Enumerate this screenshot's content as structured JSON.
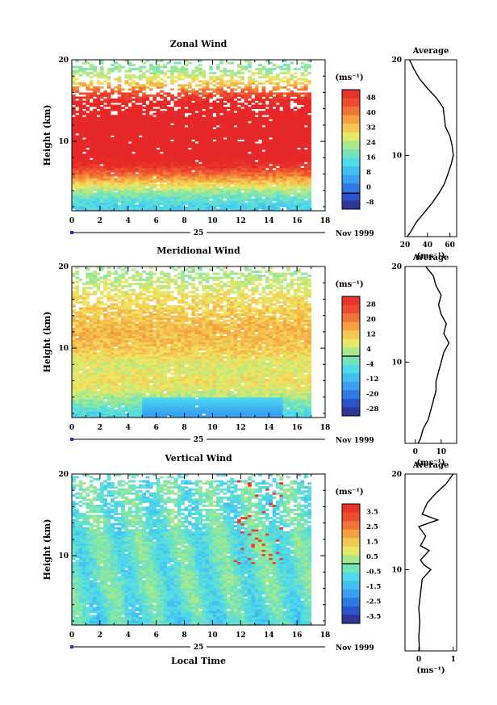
{
  "figure": {
    "date_label": "Nov 1999",
    "xlabel": "Local Time",
    "day_label": "25",
    "height_label": "Height (km)",
    "unit_label": "(ms⁻¹)"
  },
  "chart_data": [
    {
      "type": "heatmap",
      "title": "Zonal Wind",
      "x_ticks": [
        0,
        2,
        4,
        6,
        8,
        10,
        12,
        14,
        16,
        18
      ],
      "y_ticks": [
        10,
        20
      ],
      "xlim": [
        0,
        18
      ],
      "ylim": [
        1.5,
        20
      ],
      "colorbar": {
        "ticks": [
          "48",
          "40",
          "32",
          "24",
          "16",
          "8",
          "0",
          "-8"
        ],
        "range": [
          -8,
          52
        ]
      },
      "rows": [
        {
          "h": 2,
          "v": 14
        },
        {
          "h": 3,
          "v": 18
        },
        {
          "h": 4,
          "v": 24
        },
        {
          "h": 5,
          "v": 33
        },
        {
          "h": 6,
          "v": 42
        },
        {
          "h": 7,
          "v": 50
        },
        {
          "h": 8,
          "v": 56
        },
        {
          "h": 9,
          "v": 60
        },
        {
          "h": 10,
          "v": 62
        },
        {
          "h": 11,
          "v": 61
        },
        {
          "h": 12,
          "v": 59
        },
        {
          "h": 13,
          "v": 55
        },
        {
          "h": 14,
          "v": 56
        },
        {
          "h": 15,
          "v": 52
        },
        {
          "h": 16,
          "v": 44
        },
        {
          "h": 17,
          "v": 34
        },
        {
          "h": 18,
          "v": 27
        },
        {
          "h": 19,
          "v": 22
        }
      ],
      "average": {
        "title": "Average",
        "xlabel": "(ms⁻¹)",
        "x_ticks": [
          20,
          40,
          60
        ],
        "xlim": [
          20,
          66
        ],
        "profile": [
          {
            "h": 1.5,
            "v": 22
          },
          {
            "h": 2,
            "v": 25
          },
          {
            "h": 3,
            "v": 30
          },
          {
            "h": 4,
            "v": 37
          },
          {
            "h": 5,
            "v": 44
          },
          {
            "h": 6,
            "v": 50
          },
          {
            "h": 7,
            "v": 55
          },
          {
            "h": 8,
            "v": 58
          },
          {
            "h": 9,
            "v": 61
          },
          {
            "h": 10,
            "v": 63
          },
          {
            "h": 11,
            "v": 62
          },
          {
            "h": 12,
            "v": 60
          },
          {
            "h": 13,
            "v": 56
          },
          {
            "h": 14,
            "v": 55
          },
          {
            "h": 15,
            "v": 54
          },
          {
            "h": 16,
            "v": 48
          },
          {
            "h": 17,
            "v": 40
          },
          {
            "h": 18,
            "v": 33
          },
          {
            "h": 19,
            "v": 28
          },
          {
            "h": 20,
            "v": 24
          }
        ]
      }
    },
    {
      "type": "heatmap",
      "title": "Meridional Wind",
      "x_ticks": [
        0,
        2,
        4,
        6,
        8,
        10,
        12,
        14,
        16,
        18
      ],
      "y_ticks": [
        10,
        20
      ],
      "xlim": [
        0,
        18
      ],
      "ylim": [
        1.5,
        20
      ],
      "colorbar": {
        "ticks": [
          "28",
          "20",
          "12",
          "4",
          "-4",
          "-12",
          "-20",
          "-28"
        ],
        "range": [
          -28,
          28
        ]
      },
      "rows": [
        {
          "h": 2,
          "v": -6
        },
        {
          "h": 3,
          "v": -2
        },
        {
          "h": 4,
          "v": 2
        },
        {
          "h": 5,
          "v": 6
        },
        {
          "h": 6,
          "v": 7
        },
        {
          "h": 7,
          "v": 6
        },
        {
          "h": 8,
          "v": 5
        },
        {
          "h": 9,
          "v": 8
        },
        {
          "h": 10,
          "v": 10
        },
        {
          "h": 11,
          "v": 11
        },
        {
          "h": 12,
          "v": 12
        },
        {
          "h": 13,
          "v": 11
        },
        {
          "h": 14,
          "v": 10
        },
        {
          "h": 15,
          "v": 9
        },
        {
          "h": 16,
          "v": 8
        },
        {
          "h": 17,
          "v": 6
        },
        {
          "h": 18,
          "v": 4
        },
        {
          "h": 19,
          "v": 2
        }
      ],
      "average": {
        "title": "Average",
        "xlabel": "(ms⁻¹)",
        "x_ticks": [
          0,
          10
        ],
        "xlim": [
          -4,
          16
        ],
        "profile": [
          {
            "h": 1.5,
            "v": 1
          },
          {
            "h": 2,
            "v": 2
          },
          {
            "h": 3,
            "v": 3
          },
          {
            "h": 4,
            "v": 5
          },
          {
            "h": 5,
            "v": 6
          },
          {
            "h": 6,
            "v": 7
          },
          {
            "h": 7,
            "v": 8
          },
          {
            "h": 8,
            "v": 8
          },
          {
            "h": 9,
            "v": 9
          },
          {
            "h": 10,
            "v": 10
          },
          {
            "h": 11,
            "v": 11
          },
          {
            "h": 12,
            "v": 13
          },
          {
            "h": 13,
            "v": 11
          },
          {
            "h": 14,
            "v": 12
          },
          {
            "h": 15,
            "v": 10
          },
          {
            "h": 16,
            "v": 9
          },
          {
            "h": 17,
            "v": 10
          },
          {
            "h": 18,
            "v": 8
          },
          {
            "h": 19,
            "v": 7
          },
          {
            "h": 20,
            "v": 4
          }
        ]
      }
    },
    {
      "type": "heatmap",
      "title": "Vertical Wind",
      "x_ticks": [
        0,
        2,
        4,
        6,
        8,
        10,
        12,
        14,
        16,
        18
      ],
      "y_ticks": [
        10,
        20
      ],
      "xlim": [
        0,
        18
      ],
      "ylim": [
        1.5,
        20
      ],
      "colorbar": {
        "ticks": [
          "3.5",
          "2.5",
          "1.5",
          "0.5",
          "-0.5",
          "-1.5",
          "-2.5",
          "-3.5"
        ],
        "range": [
          -4,
          4
        ]
      },
      "rows": [
        {
          "h": 2,
          "v": -0.8
        },
        {
          "h": 3,
          "v": -0.7
        },
        {
          "h": 4,
          "v": -0.6
        },
        {
          "h": 5,
          "v": -0.5
        },
        {
          "h": 6,
          "v": -0.5
        },
        {
          "h": 7,
          "v": -0.4
        },
        {
          "h": 8,
          "v": -0.5
        },
        {
          "h": 9,
          "v": -0.6
        },
        {
          "h": 10,
          "v": -0.5
        },
        {
          "h": 11,
          "v": -0.4
        },
        {
          "h": 12,
          "v": -0.5
        },
        {
          "h": 13,
          "v": -0.6
        },
        {
          "h": 14,
          "v": -0.4
        },
        {
          "h": 15,
          "v": -0.5
        },
        {
          "h": 16,
          "v": -0.6
        },
        {
          "h": 17,
          "v": -0.5
        },
        {
          "h": 18,
          "v": -0.4
        },
        {
          "h": 19,
          "v": -0.5
        }
      ],
      "average": {
        "title": "Average",
        "xlabel": "(ms⁻¹)",
        "x_ticks": [
          0,
          1
        ],
        "xlim": [
          -0.4,
          1.1
        ],
        "profile": [
          {
            "h": 1.5,
            "v": 0.02
          },
          {
            "h": 3,
            "v": 0.0
          },
          {
            "h": 4.5,
            "v": 0.03
          },
          {
            "h": 6,
            "v": 0.0
          },
          {
            "h": 7.5,
            "v": 0.05
          },
          {
            "h": 9,
            "v": 0.1
          },
          {
            "h": 10,
            "v": 0.35
          },
          {
            "h": 10.5,
            "v": 0.15
          },
          {
            "h": 11,
            "v": 0.05
          },
          {
            "h": 12,
            "v": 0.3
          },
          {
            "h": 12.5,
            "v": 0.05
          },
          {
            "h": 13.5,
            "v": 0.2
          },
          {
            "h": 14.5,
            "v": 0.0
          },
          {
            "h": 15.2,
            "v": 0.55
          },
          {
            "h": 15.8,
            "v": 0.1
          },
          {
            "h": 17,
            "v": 0.25
          },
          {
            "h": 18,
            "v": 0.5
          },
          {
            "h": 19,
            "v": 0.8
          },
          {
            "h": 20,
            "v": 1.0
          }
        ]
      }
    }
  ]
}
